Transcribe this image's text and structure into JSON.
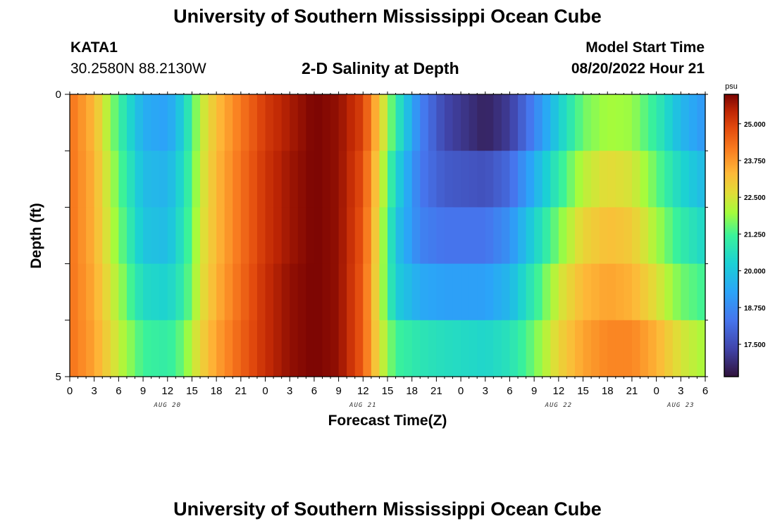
{
  "header": {
    "title": "University of Southern Mississippi Ocean Cube",
    "station_id": "KATA1",
    "station_coords": "30.2580N  88.2130W",
    "plot_title": "2-D Salinity at Depth",
    "model_start_label": "Model Start Time",
    "model_start_value": "08/20/2022 Hour 21"
  },
  "footer": {
    "title": "University of Southern Mississippi Ocean Cube"
  },
  "chart_data": {
    "type": "heatmap",
    "title": "2-D Salinity at Depth",
    "xlabel": "Forecast Time(Z)",
    "ylabel": "Depth (ft)",
    "x_tick_labels": [
      "0",
      "3",
      "6",
      "9",
      "12",
      "15",
      "18",
      "21",
      "0",
      "3",
      "6",
      "9",
      "12",
      "15",
      "18",
      "21",
      "0",
      "3",
      "6",
      "9",
      "12",
      "15",
      "18",
      "21",
      "0",
      "3",
      "6"
    ],
    "date_labels": [
      {
        "label": "AUG 20",
        "hour": 12
      },
      {
        "label": "AUG 21",
        "hour": 36
      },
      {
        "label": "AUG 22",
        "hour": 60
      },
      {
        "label": "AUG 23",
        "hour": 75
      }
    ],
    "x_range_hours": [
      0,
      78
    ],
    "y_tick_labels": [
      "0",
      "5"
    ],
    "ylim": [
      0,
      5
    ],
    "depth_layers": 5,
    "colorbar": {
      "unit": "psu",
      "min": 16.4,
      "max": 26.0,
      "tick_labels": [
        "25.000",
        "23.750",
        "22.500",
        "21.250",
        "20.000",
        "18.750",
        "17.500"
      ],
      "tick_values": [
        25.0,
        23.75,
        22.5,
        21.25,
        20.0,
        18.75,
        17.5
      ]
    },
    "salinity_psu": [
      {
        "depth_layer": "0-1 ft",
        "points": [
          [
            0,
            24.3
          ],
          [
            3,
            23.3
          ],
          [
            6,
            21.2
          ],
          [
            9,
            19.5
          ],
          [
            12,
            19.2
          ],
          [
            14,
            20.3
          ],
          [
            16,
            22.2
          ],
          [
            18,
            23.2
          ],
          [
            21,
            24.2
          ],
          [
            24,
            25.1
          ],
          [
            27,
            25.6
          ],
          [
            30,
            26.0
          ],
          [
            33,
            25.8
          ],
          [
            36,
            25.0
          ],
          [
            38,
            23.0
          ],
          [
            40,
            21.0
          ],
          [
            43,
            18.6
          ],
          [
            46,
            17.4
          ],
          [
            51,
            16.7
          ],
          [
            54,
            17.2
          ],
          [
            57,
            18.6
          ],
          [
            60,
            20.2
          ],
          [
            63,
            21.6
          ],
          [
            66,
            22.0
          ],
          [
            69,
            21.9
          ],
          [
            72,
            21.0
          ],
          [
            75,
            19.7
          ],
          [
            78,
            19.0
          ]
        ]
      },
      {
        "depth_layer": "1-2 ft",
        "points": [
          [
            0,
            24.3
          ],
          [
            3,
            23.4
          ],
          [
            6,
            21.5
          ],
          [
            9,
            19.8
          ],
          [
            12,
            19.6
          ],
          [
            14,
            20.6
          ],
          [
            16,
            22.3
          ],
          [
            18,
            23.3
          ],
          [
            21,
            24.3
          ],
          [
            24,
            25.2
          ],
          [
            27,
            25.7
          ],
          [
            30,
            26.0
          ],
          [
            33,
            25.8
          ],
          [
            36,
            24.8
          ],
          [
            38,
            22.7
          ],
          [
            40,
            20.4
          ],
          [
            43,
            18.4
          ],
          [
            46,
            17.8
          ],
          [
            51,
            17.6
          ],
          [
            54,
            18.1
          ],
          [
            57,
            19.5
          ],
          [
            60,
            21.0
          ],
          [
            63,
            22.2
          ],
          [
            66,
            22.7
          ],
          [
            69,
            22.5
          ],
          [
            72,
            21.5
          ],
          [
            75,
            20.4
          ],
          [
            78,
            19.7
          ]
        ]
      },
      {
        "depth_layer": "2-3 ft",
        "points": [
          [
            0,
            24.3
          ],
          [
            3,
            23.4
          ],
          [
            6,
            21.7
          ],
          [
            9,
            20.0
          ],
          [
            12,
            19.8
          ],
          [
            14,
            20.8
          ],
          [
            16,
            22.4
          ],
          [
            18,
            23.3
          ],
          [
            21,
            24.3
          ],
          [
            24,
            25.2
          ],
          [
            27,
            25.7
          ],
          [
            30,
            26.0
          ],
          [
            33,
            25.8
          ],
          [
            36,
            24.7
          ],
          [
            38,
            22.5
          ],
          [
            40,
            20.0
          ],
          [
            43,
            18.6
          ],
          [
            46,
            18.3
          ],
          [
            51,
            18.3
          ],
          [
            54,
            18.9
          ],
          [
            57,
            20.3
          ],
          [
            60,
            21.7
          ],
          [
            63,
            22.8
          ],
          [
            66,
            23.2
          ],
          [
            69,
            23.0
          ],
          [
            72,
            22.0
          ],
          [
            75,
            21.0
          ],
          [
            78,
            20.4
          ]
        ]
      },
      {
        "depth_layer": "3-4 ft",
        "points": [
          [
            0,
            24.3
          ],
          [
            3,
            23.5
          ],
          [
            6,
            22.0
          ],
          [
            9,
            20.5
          ],
          [
            12,
            20.3
          ],
          [
            14,
            21.0
          ],
          [
            16,
            22.5
          ],
          [
            18,
            23.4
          ],
          [
            21,
            24.4
          ],
          [
            24,
            25.3
          ],
          [
            27,
            25.8
          ],
          [
            30,
            26.0
          ],
          [
            33,
            25.8
          ],
          [
            36,
            24.6
          ],
          [
            38,
            22.4
          ],
          [
            40,
            20.2
          ],
          [
            43,
            19.4
          ],
          [
            46,
            19.2
          ],
          [
            51,
            19.2
          ],
          [
            54,
            19.7
          ],
          [
            57,
            21.0
          ],
          [
            60,
            22.4
          ],
          [
            63,
            23.3
          ],
          [
            66,
            23.6
          ],
          [
            69,
            23.4
          ],
          [
            72,
            22.6
          ],
          [
            75,
            21.6
          ],
          [
            78,
            21.2
          ]
        ]
      },
      {
        "depth_layer": "4-5 ft",
        "points": [
          [
            0,
            24.3
          ],
          [
            3,
            23.6
          ],
          [
            6,
            22.3
          ],
          [
            9,
            21.2
          ],
          [
            12,
            21.0
          ],
          [
            14,
            21.6
          ],
          [
            16,
            22.8
          ],
          [
            18,
            23.6
          ],
          [
            21,
            24.5
          ],
          [
            24,
            25.3
          ],
          [
            27,
            25.8
          ],
          [
            30,
            26.0
          ],
          [
            33,
            25.8
          ],
          [
            36,
            24.6
          ],
          [
            38,
            22.6
          ],
          [
            40,
            21.2
          ],
          [
            43,
            20.8
          ],
          [
            46,
            20.6
          ],
          [
            51,
            20.4
          ],
          [
            54,
            20.7
          ],
          [
            57,
            21.6
          ],
          [
            60,
            22.8
          ],
          [
            63,
            23.6
          ],
          [
            66,
            24.0
          ],
          [
            69,
            24.0
          ],
          [
            72,
            23.4
          ],
          [
            75,
            22.5
          ],
          [
            78,
            22.0
          ]
        ]
      }
    ]
  }
}
